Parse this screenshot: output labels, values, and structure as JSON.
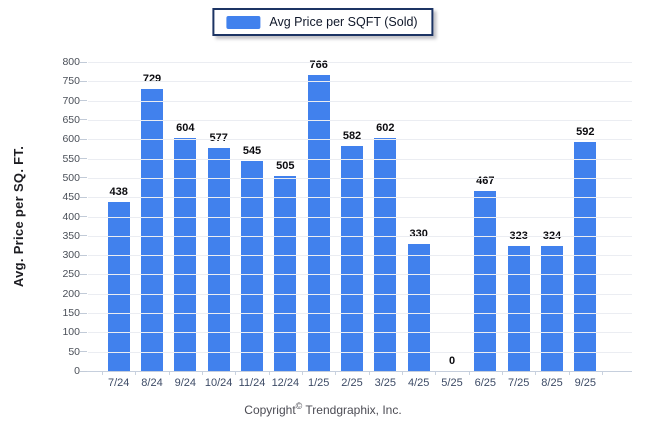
{
  "legend": {
    "label": "Avg Price per SQFT (Sold)",
    "swatch_color": "#4181ed"
  },
  "chart_data": {
    "type": "bar",
    "title": "",
    "categories": [
      "7/24",
      "8/24",
      "9/24",
      "10/24",
      "11/24",
      "12/24",
      "1/25",
      "2/25",
      "3/25",
      "4/25",
      "5/25",
      "6/25",
      "7/25",
      "8/25",
      "9/25"
    ],
    "values": [
      438,
      729,
      604,
      577,
      545,
      505,
      766,
      582,
      602,
      330,
      0,
      467,
      323,
      324,
      592
    ],
    "series_name": "Avg Price per SQFT (Sold)",
    "xlabel": "",
    "ylabel": "Avg. Price per SQ. FT.",
    "ylim": [
      0,
      800
    ],
    "ytick_step": 50,
    "grid": "horizontal",
    "legend_position": "top-center",
    "bar_color": "#4181ed",
    "data_labels": true
  },
  "footer": {
    "copyright_prefix": "Copyright",
    "copyright_symbol": "©",
    "copyright_suffix": " Trendgraphix, Inc."
  },
  "colors": {
    "bar": "#4181ed",
    "legend_border": "#1c3464",
    "gridline": "#ebedf2",
    "axis_line": "#c6cfdd",
    "ytick_text": "#4a4f58",
    "xtick_text": "#3d4b66",
    "value_text": "#0c0c10",
    "background": "#ffffff"
  }
}
